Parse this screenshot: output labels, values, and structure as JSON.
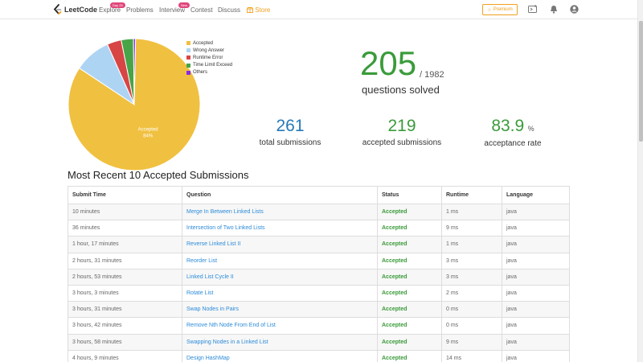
{
  "nav": {
    "logo_text": "LeetCode",
    "links": [
      {
        "label": "Explore",
        "badge": "Day 25"
      },
      {
        "label": "Problems",
        "badge": ""
      },
      {
        "label": "Interview",
        "badge": "New"
      },
      {
        "label": "Contest",
        "badge": ""
      },
      {
        "label": "Discuss",
        "badge": ""
      },
      {
        "label": "Store",
        "badge": ""
      }
    ],
    "premium_label": "Premium",
    "icons": [
      "playground-icon",
      "bell-icon",
      "user-icon"
    ]
  },
  "chart_data": {
    "type": "pie",
    "slices": [
      {
        "name": "Accepted",
        "value": 84,
        "color": "#f0c040"
      },
      {
        "name": "Wrong Answer",
        "value": 9,
        "color": "#aed4f4"
      },
      {
        "name": "Runtime Error",
        "value": 3.5,
        "color": "#d74545"
      },
      {
        "name": "Time Limit Exceed",
        "value": 3,
        "color": "#47a447"
      },
      {
        "name": "Others",
        "value": 0.5,
        "color": "#8a2be2"
      }
    ],
    "slice_label": {
      "name": "Accepted",
      "percent": "84%"
    },
    "legend_position": "right"
  },
  "summary": {
    "solved": "205",
    "total": "/ 1982",
    "solved_label": "questions solved",
    "total_submissions": "261",
    "total_submissions_label": "total submissions",
    "accepted_submissions": "219",
    "accepted_submissions_label": "accepted submissions",
    "acceptance_rate": "83.9",
    "acceptance_unit": "%",
    "acceptance_label": "acceptance rate",
    "colors": {
      "total": "#2779b8",
      "accepted": "#3a9b3a",
      "rate": "#3a9b3a"
    }
  },
  "recent": {
    "title": "Most Recent 10 Accepted Submissions",
    "columns": [
      "Submit Time",
      "Question",
      "Status",
      "Runtime",
      "Language"
    ],
    "rows": [
      {
        "time": "10 minutes",
        "question": "Merge In Between Linked Lists",
        "status": "Accepted",
        "runtime": "1 ms",
        "language": "java"
      },
      {
        "time": "36 minutes",
        "question": "Intersection of Two Linked Lists",
        "status": "Accepted",
        "runtime": "9 ms",
        "language": "java"
      },
      {
        "time": "1 hour, 17 minutes",
        "question": "Reverse Linked List II",
        "status": "Accepted",
        "runtime": "1 ms",
        "language": "java"
      },
      {
        "time": "2 hours, 31 minutes",
        "question": "Reorder List",
        "status": "Accepted",
        "runtime": "3 ms",
        "language": "java"
      },
      {
        "time": "2 hours, 53 minutes",
        "question": "Linked List Cycle II",
        "status": "Accepted",
        "runtime": "3 ms",
        "language": "java"
      },
      {
        "time": "3 hours, 3 minutes",
        "question": "Rotate List",
        "status": "Accepted",
        "runtime": "2 ms",
        "language": "java"
      },
      {
        "time": "3 hours, 31 minutes",
        "question": "Swap Nodes in Pairs",
        "status": "Accepted",
        "runtime": "0 ms",
        "language": "java"
      },
      {
        "time": "3 hours, 42 minutes",
        "question": "Remove Nth Node From End of List",
        "status": "Accepted",
        "runtime": "0 ms",
        "language": "java"
      },
      {
        "time": "3 hours, 58 minutes",
        "question": "Swapping Nodes in a Linked List",
        "status": "Accepted",
        "runtime": "9 ms",
        "language": "java"
      },
      {
        "time": "4 hours, 9 minutes",
        "question": "Design HashMap",
        "status": "Accepted",
        "runtime": "14 ms",
        "language": "java"
      }
    ]
  }
}
